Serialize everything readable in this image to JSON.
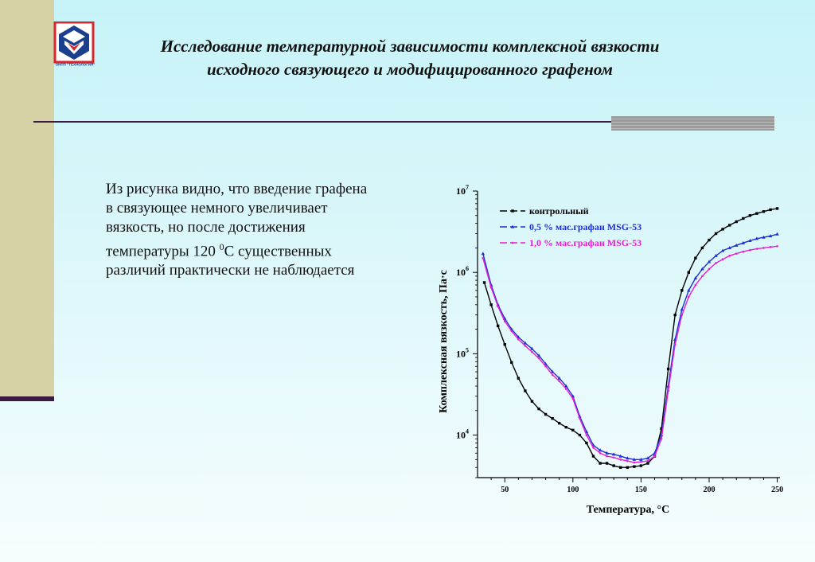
{
  "slide": {
    "logo_text": "ОНПП \"ТЕХНОЛОГИЯ\"",
    "title_line1": "Исследование температурной зависимости комплексной вязкости",
    "title_line2": "исходного связующего и модифицированного графеном",
    "body_text_before": "Из рисунка видно, что введение графена в связующее немного увеличивает вязкость, но после достижения температуры 120 ",
    "body_text_sup": "0",
    "body_text_after": "С существенных различий практически не наблюдается"
  },
  "colors": {
    "background_top": "#c6f3f8",
    "sidebar": "#d6d2a6",
    "rule": "#3a1a3e",
    "logo_red": "#d8262e",
    "logo_blue": "#1b3f8f"
  },
  "chart_data": {
    "type": "scatter",
    "xlabel": "Температура, °С",
    "ylabel": "Комплексная вязкость, Па·с",
    "xscale": "linear",
    "yscale": "log",
    "xlim": [
      30,
      252
    ],
    "ylim": [
      3000,
      10000000
    ],
    "x_ticks": [
      50,
      100,
      150,
      200,
      250
    ],
    "y_ticks": [
      {
        "value": 10000,
        "base": "10",
        "exp": "4"
      },
      {
        "value": 100000,
        "base": "10",
        "exp": "5"
      },
      {
        "value": 1000000,
        "base": "10",
        "exp": "6"
      },
      {
        "value": 10000000,
        "base": "10",
        "exp": "7"
      }
    ],
    "grid": false,
    "legend_position": "top-left",
    "series": [
      {
        "name": "контрольный",
        "color": "#000000",
        "marker": "square",
        "points": [
          [
            35,
            750000
          ],
          [
            40,
            400000
          ],
          [
            45,
            220000
          ],
          [
            50,
            130000
          ],
          [
            55,
            78000
          ],
          [
            60,
            50000
          ],
          [
            65,
            35000
          ],
          [
            70,
            26000
          ],
          [
            75,
            21000
          ],
          [
            80,
            18000
          ],
          [
            85,
            16000
          ],
          [
            90,
            14000
          ],
          [
            95,
            12500
          ],
          [
            100,
            11500
          ],
          [
            105,
            10000
          ],
          [
            110,
            8000
          ],
          [
            115,
            5500
          ],
          [
            120,
            4500
          ],
          [
            125,
            4500
          ],
          [
            130,
            4200
          ],
          [
            135,
            4000
          ],
          [
            140,
            4000
          ],
          [
            145,
            4100
          ],
          [
            150,
            4200
          ],
          [
            155,
            4500
          ],
          [
            160,
            5500
          ],
          [
            165,
            12000
          ],
          [
            170,
            65000
          ],
          [
            175,
            300000
          ],
          [
            180,
            600000
          ],
          [
            185,
            1000000
          ],
          [
            190,
            1500000
          ],
          [
            195,
            2000000
          ],
          [
            200,
            2500000
          ],
          [
            205,
            3000000
          ],
          [
            210,
            3400000
          ],
          [
            215,
            3800000
          ],
          [
            220,
            4200000
          ],
          [
            225,
            4600000
          ],
          [
            230,
            5000000
          ],
          [
            235,
            5300000
          ],
          [
            240,
            5600000
          ],
          [
            245,
            5900000
          ],
          [
            250,
            6100000
          ]
        ]
      },
      {
        "name": "0,5 % мас.графан MSG-53",
        "color": "#1f2fd8",
        "marker": "triangle",
        "points": [
          [
            34,
            1700000
          ],
          [
            40,
            700000
          ],
          [
            45,
            400000
          ],
          [
            50,
            270000
          ],
          [
            55,
            200000
          ],
          [
            60,
            160000
          ],
          [
            65,
            135000
          ],
          [
            70,
            115000
          ],
          [
            75,
            95000
          ],
          [
            80,
            75000
          ],
          [
            85,
            60000
          ],
          [
            90,
            50000
          ],
          [
            95,
            40000
          ],
          [
            100,
            30000
          ],
          [
            105,
            17000
          ],
          [
            110,
            11000
          ],
          [
            115,
            7500
          ],
          [
            120,
            6500
          ],
          [
            125,
            6000
          ],
          [
            130,
            5800
          ],
          [
            135,
            5500
          ],
          [
            140,
            5200
          ],
          [
            145,
            5000
          ],
          [
            150,
            5000
          ],
          [
            155,
            5200
          ],
          [
            160,
            6000
          ],
          [
            165,
            10000
          ],
          [
            170,
            40000
          ],
          [
            175,
            150000
          ],
          [
            180,
            350000
          ],
          [
            185,
            600000
          ],
          [
            190,
            850000
          ],
          [
            195,
            1100000
          ],
          [
            200,
            1350000
          ],
          [
            205,
            1600000
          ],
          [
            210,
            1850000
          ],
          [
            215,
            2000000
          ],
          [
            220,
            2150000
          ],
          [
            225,
            2300000
          ],
          [
            230,
            2450000
          ],
          [
            235,
            2600000
          ],
          [
            240,
            2700000
          ],
          [
            245,
            2800000
          ],
          [
            250,
            2950000
          ]
        ]
      },
      {
        "name": "1,0 % мас.графан MSG-53",
        "color": "#e81ed2",
        "marker": "dot",
        "points": [
          [
            34,
            1500000
          ],
          [
            40,
            650000
          ],
          [
            45,
            380000
          ],
          [
            50,
            250000
          ],
          [
            55,
            190000
          ],
          [
            60,
            150000
          ],
          [
            65,
            125000
          ],
          [
            70,
            105000
          ],
          [
            75,
            88000
          ],
          [
            80,
            70000
          ],
          [
            85,
            55000
          ],
          [
            90,
            46000
          ],
          [
            95,
            37000
          ],
          [
            100,
            28000
          ],
          [
            105,
            16000
          ],
          [
            110,
            10000
          ],
          [
            115,
            7000
          ],
          [
            120,
            6000
          ],
          [
            125,
            5500
          ],
          [
            130,
            5300
          ],
          [
            135,
            5000
          ],
          [
            140,
            4800
          ],
          [
            145,
            4600
          ],
          [
            150,
            4700
          ],
          [
            155,
            4800
          ],
          [
            160,
            5500
          ],
          [
            165,
            9000
          ],
          [
            170,
            35000
          ],
          [
            175,
            130000
          ],
          [
            180,
            300000
          ],
          [
            185,
            500000
          ],
          [
            190,
            700000
          ],
          [
            195,
            900000
          ],
          [
            200,
            1100000
          ],
          [
            205,
            1300000
          ],
          [
            210,
            1450000
          ],
          [
            215,
            1600000
          ],
          [
            220,
            1700000
          ],
          [
            225,
            1800000
          ],
          [
            230,
            1880000
          ],
          [
            235,
            1950000
          ],
          [
            240,
            2000000
          ],
          [
            245,
            2050000
          ],
          [
            250,
            2100000
          ]
        ]
      }
    ]
  }
}
